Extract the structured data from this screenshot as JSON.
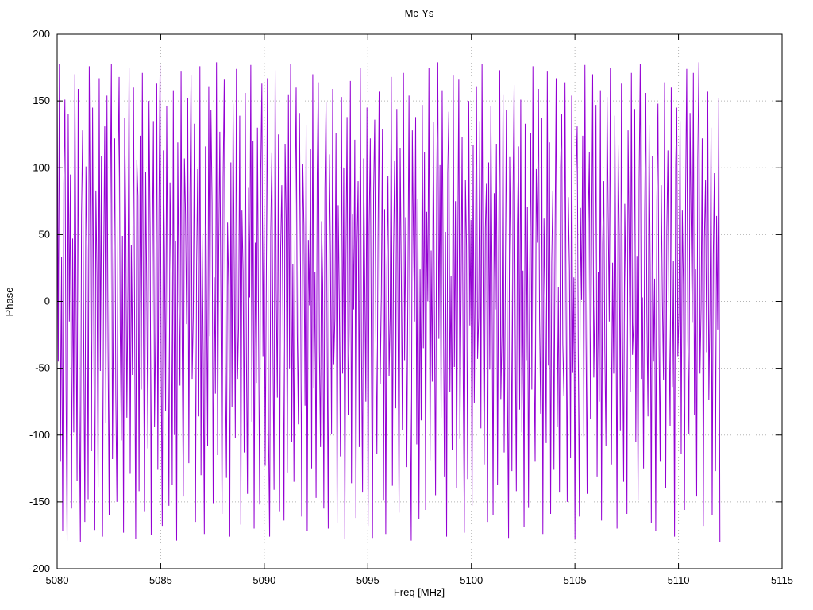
{
  "figure": {
    "title": "Mc-Ys",
    "xlabel": "Freq [MHz]",
    "ylabel": "Phase"
  },
  "chart_data": {
    "type": "line",
    "title": "Mc-Ys",
    "xlabel": "Freq [MHz]",
    "ylabel": "Phase",
    "xlim": [
      5080,
      5115
    ],
    "ylim": [
      -200,
      200
    ],
    "xticks": [
      5080,
      5085,
      5090,
      5095,
      5100,
      5105,
      5110,
      5115
    ],
    "yticks": [
      -200,
      -150,
      -100,
      -50,
      0,
      50,
      100,
      150,
      200
    ],
    "grid": "dotted",
    "legend_position": "none",
    "line_color": "#9400d3",
    "series": [
      {
        "name": "Mc-Ys",
        "x_start": 5080,
        "x_end": 5112,
        "values": [
          162,
          -45,
          178,
          -120,
          33,
          -172,
          88,
          151,
          -60,
          -179,
          140,
          -15,
          95,
          -155,
          47,
          -98,
          170,
          12,
          -134,
          159,
          -77,
          -180,
          64,
          128,
          -29,
          -165,
          101,
          39,
          -148,
          176,
          58,
          -112,
          145,
          -8,
          -171,
          83,
          19,
          -139,
          167,
          -52,
          109,
          -176,
          27,
          131,
          -91,
          154,
          -36,
          -160,
          73,
          178,
          -118,
          5,
          122,
          -70,
          -150,
          92,
          168,
          -23,
          -104,
          49,
          -173,
          137,
          61,
          -87,
          15,
          175,
          -129,
          42,
          -55,
          160,
          -14,
          -178,
          106,
          79,
          -142,
          124,
          -66,
          171,
          -31,
          -157,
          97,
          8,
          -110,
          150,
          54,
          -175,
          29,
          135,
          -94,
          -21,
          163,
          -126,
          70,
          177,
          -48,
          -168,
          113,
          36,
          -82,
          146,
          -7,
          -153,
          89,
          21,
          -137,
          158,
          -100,
          45,
          -179,
          119,
          2,
          -63,
          172,
          -34,
          -146,
          107,
          66,
          -17,
          152,
          -121,
          80,
          169,
          -58,
          -11,
          133,
          -165,
          25,
          99,
          -86,
          176,
          -130,
          51,
          -40,
          -174,
          116,
          6,
          -108,
          161,
          -26,
          143,
          74,
          -151,
          18,
          -69,
          179,
          -115,
          37,
          127,
          -4,
          -159,
          93,
          166,
          -46,
          -132,
          59,
          11,
          -176,
          104,
          -79,
          148,
          31,
          -102,
          174,
          -58,
          -19,
          139,
          -167,
          68,
          23,
          -113,
          156,
          -38,
          -144,
          85,
          3,
          177,
          -90,
          120,
          -170,
          44,
          -61,
          130,
          -16,
          -152,
          98,
          163,
          -41,
          76,
          -123,
          14,
          167,
          -96,
          -176,
          53,
          111,
          -33,
          -141,
          173,
          9,
          -72,
          125,
          -157,
          40,
          87,
          -10,
          -164,
          118,
          62,
          -128,
          155,
          -50,
          178,
          -105,
          28,
          -135,
          71,
          160,
          -24,
          -92,
          141,
          17,
          -161,
          103,
          57,
          -78,
          132,
          -172,
          46,
          -3,
          114,
          -125,
          170,
          -65,
          22,
          -147,
          95,
          164,
          -37,
          -109,
          60,
          13,
          -155,
          84,
          149,
          -27,
          -170,
          110,
          35,
          -99,
          159,
          -47,
          -13,
          126,
          -166,
          72,
          1,
          -116,
          153,
          -54,
          100,
          -178,
          30,
          138,
          -85,
          -20,
          165,
          -136,
          65,
          -6,
          121,
          -162,
          43,
          90,
          -109,
          175,
          -30,
          -143,
          107,
          16,
          -75,
          145,
          -168,
          56,
          122,
          -41,
          -177,
          82,
          136,
          -22,
          -114,
          48,
          157,
          -62,
          5,
          129,
          -149,
          69,
          -174,
          26,
          94,
          -56,
          -12,
          168,
          -138,
          34,
          105,
          -80,
          144,
          -5,
          -158,
          115,
          20,
          -96,
          171,
          -44,
          63,
          -124,
          8,
          154,
          -72,
          -179,
          128,
          50,
          -15,
          138,
          -107,
          77,
          -163,
          24,
          -89,
          147,
          -35,
          112,
          -156,
          67,
          0,
          175,
          -119,
          38,
          -60,
          134,
          -9,
          -145,
          86,
          179,
          -28,
          102,
          -87,
          158,
          10,
          -131,
          52,
          -176,
          96,
          142,
          -68,
          19,
          -111,
          169,
          -49,
          75,
          -140,
          27,
          166,
          -103,
          -2,
          123,
          -59,
          -173,
          91,
          41,
          -133,
          150,
          -18,
          61,
          -153,
          117,
          -76,
          32,
          161,
          -43,
          -12,
          135,
          -95,
          178,
          7,
          -122,
          55,
          88,
          -165,
          104,
          -51,
          146,
          26,
          -160,
          81,
          -6,
          118,
          -137,
          39,
          173,
          -73,
          -25,
          155,
          -113,
          4,
          143,
          -64,
          -177,
          108,
          35,
          -127,
          79,
          162,
          -21,
          -142,
          57,
          116,
          -81,
          151,
          -98,
          23,
          -169,
          133,
          -44,
          71,
          -154,
          14,
          126,
          -66,
          176,
          -36,
          -120,
          99,
          44,
          159,
          -14,
          -84,
          137,
          -174,
          62,
          2,
          -106,
          172,
          -48,
          119,
          -159,
          30,
          83,
          -126,
          49,
          167,
          -94,
          11,
          -143,
          101,
          140,
          -32,
          -71,
          164,
          -7,
          -150,
          78,
          25,
          -117,
          154,
          -53,
          18,
          -178,
          96,
          131,
          -39,
          -161,
          70,
          1,
          124,
          -101,
          177,
          -27,
          -144,
          59,
          112,
          -88,
          36,
          170,
          -57,
          -2,
          147,
          -131,
          22,
          -75,
          158,
          -164,
          43,
          90,
          -37,
          -108,
          153,
          66,
          -15,
          175,
          -122,
          29,
          -54,
          139,
          8,
          -170,
          117,
          51,
          -97,
          163,
          -26,
          -135,
          73,
          10,
          -159,
          128,
          45,
          -68,
          171,
          -40,
          -16,
          144,
          -105,
          34,
          -149,
          92,
          178,
          -58,
          3,
          -125,
          65,
          156,
          -9,
          -86,
          132,
          27,
          -166,
          109,
          -45,
          17,
          -172,
          76,
          148,
          -33,
          -120,
          87,
          0,
          -59,
          164,
          -140,
          52,
          113,
          -22,
          -93,
          160,
          -64,
          30,
          -176,
          102,
          145,
          -41,
          -10,
          135,
          -114,
          68,
          13,
          -156,
          80,
          174,
          -29,
          -99,
          141,
          58,
          -16,
          171,
          -85,
          24,
          -146,
          106,
          179,
          -54,
          -5,
          122,
          -168,
          47,
          91,
          -38,
          157,
          -74,
          -7,
          130,
          -160,
          35,
          96,
          -127,
          64,
          -21,
          152,
          -180
        ]
      }
    ]
  }
}
